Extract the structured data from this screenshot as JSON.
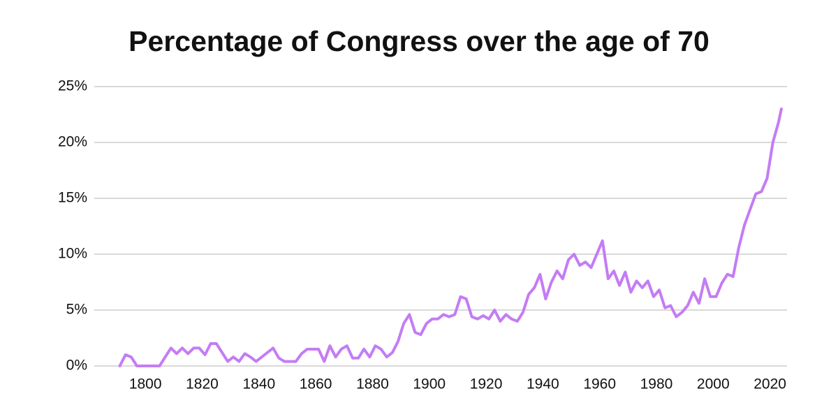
{
  "chart_data": {
    "type": "line",
    "title": "Percentage of Congress over the age of 70",
    "x": [
      1791,
      1793,
      1795,
      1797,
      1799,
      1801,
      1803,
      1805,
      1807,
      1809,
      1811,
      1813,
      1815,
      1817,
      1819,
      1821,
      1823,
      1825,
      1827,
      1829,
      1831,
      1833,
      1835,
      1837,
      1839,
      1841,
      1843,
      1845,
      1847,
      1849,
      1851,
      1853,
      1855,
      1857,
      1859,
      1861,
      1863,
      1865,
      1867,
      1869,
      1871,
      1873,
      1875,
      1877,
      1879,
      1881,
      1883,
      1885,
      1887,
      1889,
      1891,
      1893,
      1895,
      1897,
      1899,
      1901,
      1903,
      1905,
      1907,
      1909,
      1911,
      1913,
      1915,
      1917,
      1919,
      1921,
      1923,
      1925,
      1927,
      1929,
      1931,
      1933,
      1935,
      1937,
      1939,
      1941,
      1943,
      1945,
      1947,
      1949,
      1951,
      1953,
      1955,
      1957,
      1959,
      1961,
      1963,
      1965,
      1967,
      1969,
      1971,
      1973,
      1975,
      1977,
      1979,
      1981,
      1983,
      1985,
      1987,
      1989,
      1991,
      1993,
      1995,
      1997,
      1999,
      2001,
      2003,
      2005,
      2007,
      2009,
      2011,
      2013,
      2015,
      2017,
      2019,
      2021,
      2023,
      2024
    ],
    "series": [
      {
        "color": "#c47cf5",
        "values": [
          0,
          1.0,
          0.8,
          0,
          0,
          0,
          0,
          0,
          0.8,
          1.6,
          1.1,
          1.6,
          1.1,
          1.6,
          1.6,
          1.0,
          2.0,
          2.0,
          1.2,
          0.4,
          0.8,
          0.4,
          1.1,
          0.8,
          0.4,
          0.8,
          1.2,
          1.6,
          0.7,
          0.4,
          0.4,
          0.4,
          1.1,
          1.5,
          1.5,
          1.5,
          0.4,
          1.8,
          0.8,
          1.5,
          1.8,
          0.7,
          0.7,
          1.5,
          0.8,
          1.8,
          1.5,
          0.8,
          1.2,
          2.2,
          3.8,
          4.6,
          3.0,
          2.8,
          3.8,
          4.2,
          4.2,
          4.6,
          4.4,
          4.6,
          6.2,
          6.0,
          4.4,
          4.2,
          4.5,
          4.2,
          5.0,
          4.0,
          4.6,
          4.2,
          4.0,
          4.8,
          6.4,
          7.0,
          8.2,
          6.0,
          7.5,
          8.5,
          7.8,
          9.5,
          10.0,
          9.0,
          9.3,
          8.8,
          10.0,
          11.2,
          7.8,
          8.5,
          7.2,
          8.4,
          6.6,
          7.6,
          7.0,
          7.6,
          6.2,
          6.8,
          5.2,
          5.4,
          4.4,
          4.8,
          5.4,
          6.6,
          5.6,
          7.8,
          6.2,
          6.2,
          7.4,
          8.2,
          8.0,
          10.6,
          12.6,
          14.0,
          15.4,
          15.6,
          16.8,
          20.0,
          21.8,
          23.0
        ]
      }
    ],
    "xlim": [
      1782,
      2026
    ],
    "xticks": [
      1800,
      1820,
      1840,
      1860,
      1880,
      1900,
      1920,
      1940,
      1960,
      1980,
      2000,
      2020
    ],
    "ylim": [
      0,
      25
    ],
    "yticks": [
      {
        "value": 0,
        "label": "0%"
      },
      {
        "value": 5,
        "label": "5%"
      },
      {
        "value": 10,
        "label": "10%"
      },
      {
        "value": 15,
        "label": "15%"
      },
      {
        "value": 20,
        "label": "20%"
      },
      {
        "value": 25,
        "label": "25%"
      }
    ],
    "grid": true
  }
}
